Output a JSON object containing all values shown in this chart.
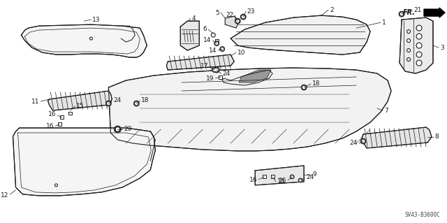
{
  "bg_color": "#ffffff",
  "line_color": "#1a1a1a",
  "diagram_code": "SV43-B3600C",
  "arrow_label": "FR.",
  "fig_width": 6.4,
  "fig_height": 3.19,
  "dpi": 100
}
